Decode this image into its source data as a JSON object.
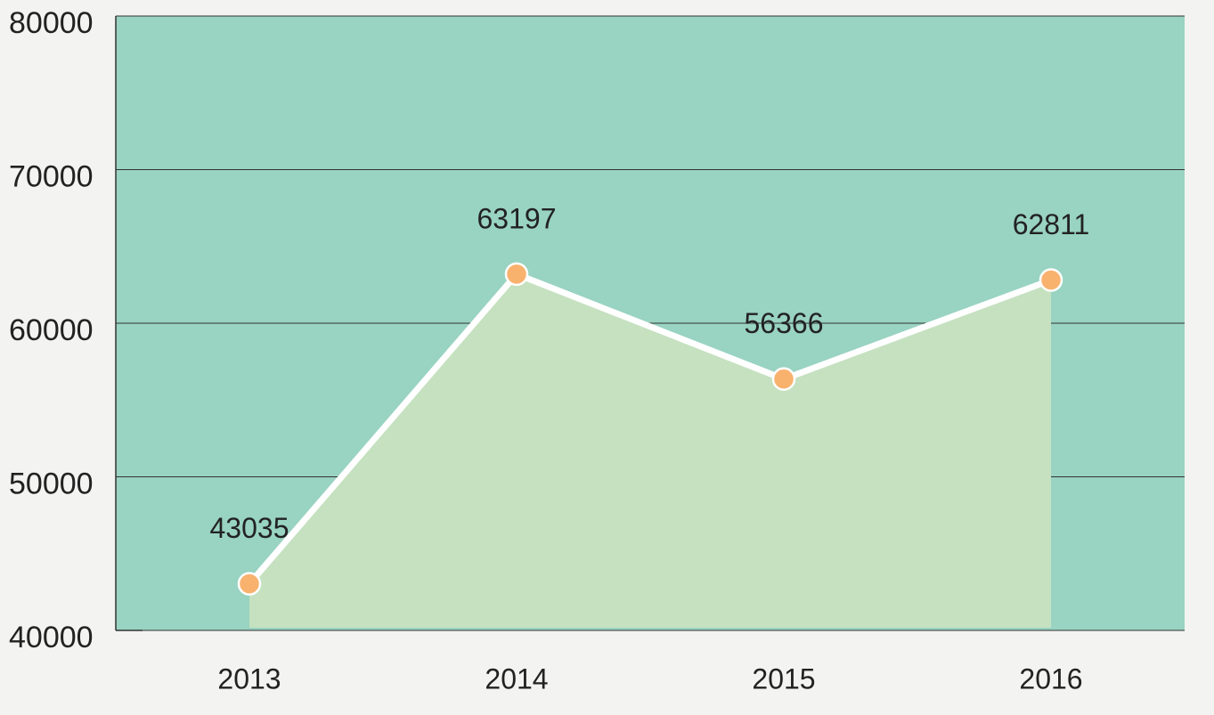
{
  "chart_data": {
    "type": "area-line",
    "categories": [
      "2013",
      "2014",
      "2015",
      "2016"
    ],
    "values": [
      43035,
      63197,
      56366,
      62811
    ],
    "color": "#ffffff",
    "marker_color": "#f8b26e",
    "area_color": "#c5e1c0",
    "background": "#99d3c1",
    "ylim": [
      40000,
      80000
    ],
    "yticks": [
      40000,
      50000,
      60000,
      70000,
      80000
    ],
    "grid": true
  }
}
